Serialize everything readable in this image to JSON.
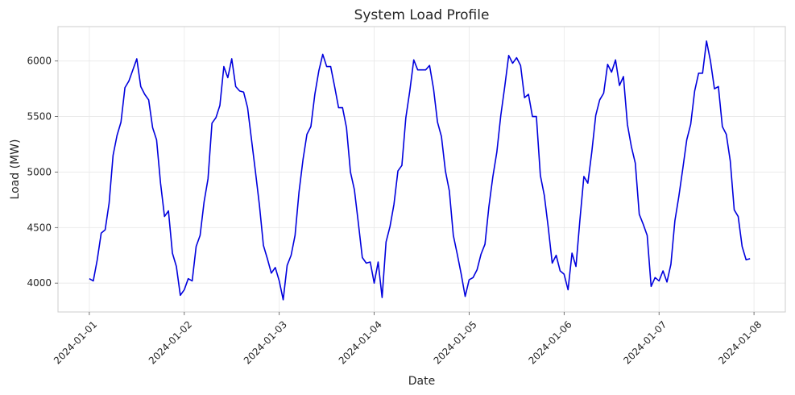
{
  "chart_data": {
    "type": "line",
    "title": "System Load Profile",
    "xlabel": "Date",
    "ylabel": "Load (MW)",
    "x_tick_labels": [
      "2024-01-01",
      "2024-01-02",
      "2024-01-03",
      "2024-01-04",
      "2024-01-05",
      "2024-01-06",
      "2024-01-07",
      "2024-01-08"
    ],
    "y_tick_labels": [
      "4000",
      "4500",
      "5000",
      "5500",
      "6000"
    ],
    "y_ticks": [
      4000,
      4500,
      5000,
      5500,
      6000
    ],
    "ylim": [
      3740,
      6310
    ],
    "xlim_days": [
      -0.33,
      7.33
    ],
    "x_sampling": "hourly",
    "x_start": "2024-01-01 00:00",
    "grid": true,
    "line_color": "#0000dd",
    "series": [
      {
        "values": [
          4040,
          4020,
          4210,
          4450,
          4480,
          4720,
          5150,
          5330,
          5450,
          5760,
          5820,
          5920,
          6020,
          5770,
          5700,
          5650,
          5400,
          5290,
          4900,
          4600,
          4650,
          4270,
          4150,
          3890,
          3940,
          4040,
          4020,
          4330,
          4430,
          4730,
          4940,
          5440,
          5490,
          5600,
          5950,
          5850,
          6020,
          5770,
          5730,
          5720,
          5580,
          5290,
          5000,
          4700,
          4340,
          4220,
          4090,
          4140,
          4020,
          3850,
          4160,
          4250,
          4430,
          4820,
          5110,
          5340,
          5410,
          5700,
          5910,
          6060,
          5950,
          5950,
          5770,
          5580,
          5580,
          5400,
          5000,
          4840,
          4540,
          4230,
          4180,
          4190,
          4000,
          4190,
          3870,
          4370,
          4510,
          4710,
          5010,
          5060,
          5490,
          5730,
          6010,
          5920,
          5920,
          5920,
          5960,
          5750,
          5450,
          5320,
          5010,
          4830,
          4430,
          4260,
          4080,
          3880,
          4030,
          4050,
          4120,
          4260,
          4350,
          4690,
          4960,
          5180,
          5510,
          5770,
          6050,
          5980,
          6030,
          5960,
          5670,
          5700,
          5500,
          5500,
          4970,
          4790,
          4500,
          4180,
          4250,
          4110,
          4080,
          3940,
          4270,
          4150,
          4570,
          4960,
          4900,
          5180,
          5510,
          5650,
          5710,
          5970,
          5900,
          6010,
          5780,
          5860,
          5430,
          5230,
          5080,
          4620,
          4530,
          4430,
          3970,
          4050,
          4020,
          4110,
          4010,
          4170,
          4560,
          4780,
          5030,
          5290,
          5430,
          5730,
          5890,
          5890,
          6180,
          6000,
          5750,
          5770,
          5410,
          5340,
          5100,
          4660,
          4600,
          4330,
          4210,
          4220
        ]
      }
    ]
  }
}
